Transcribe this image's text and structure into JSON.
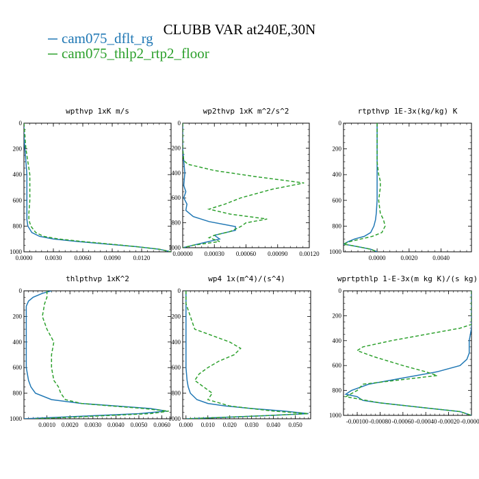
{
  "figure": {
    "title": "CLUBB VAR at240E,30N",
    "legend": [
      {
        "label": "cam075_dflt_rg",
        "color": "#1f77b4",
        "dash": "solid"
      },
      {
        "label": "cam075_thlp2_rtp2_floor",
        "color": "#2ca02c",
        "dash": "dashed"
      }
    ]
  },
  "chart_data": [
    {
      "type": "line",
      "title": "wpthvp  1xK m/s",
      "xlim": [
        0,
        0.015
      ],
      "ylim": [
        1000,
        0
      ],
      "xticks": [
        0.0,
        0.003,
        0.006,
        0.009,
        0.012
      ],
      "xtick_labels": [
        "0.0000",
        "0.0030",
        "0.0060",
        "0.0090",
        "0.0120"
      ],
      "yticks": [
        0,
        200,
        400,
        600,
        800,
        1000
      ],
      "series": [
        {
          "name": "cam075_dflt_rg",
          "y": [
            0,
            100,
            200,
            300,
            400,
            500,
            600,
            700,
            750,
            800,
            850,
            880,
            900,
            920,
            940,
            960,
            980,
            1000
          ],
          "x": [
            0.0,
            0.0,
            0.0001,
            0.0002,
            0.0003,
            0.0003,
            0.0003,
            0.0003,
            0.0003,
            0.0004,
            0.0008,
            0.0016,
            0.003,
            0.0055,
            0.0085,
            0.0115,
            0.0138,
            0.015
          ]
        },
        {
          "name": "cam075_thlp2_rtp2_floor",
          "y": [
            0,
            100,
            200,
            300,
            350,
            400,
            500,
            600,
            700,
            750,
            800,
            850,
            880,
            900,
            920,
            940,
            960,
            980,
            1000
          ],
          "x": [
            0.0,
            0.0001,
            0.0002,
            0.0004,
            0.0005,
            0.0006,
            0.0006,
            0.0006,
            0.0005,
            0.0005,
            0.0007,
            0.0012,
            0.002,
            0.0035,
            0.006,
            0.0088,
            0.0115,
            0.0138,
            0.015
          ]
        }
      ]
    },
    {
      "type": "line",
      "title": "wp2thvp  1xK m^2/s^2",
      "xlim": [
        0,
        0.0012
      ],
      "ylim": [
        1000,
        0
      ],
      "xticks": [
        0.0,
        0.0003,
        0.0006,
        0.0009,
        0.0012
      ],
      "xtick_labels": [
        "0.00000",
        "0.00030",
        "0.00060",
        "0.00090",
        "0.00120"
      ],
      "yticks": [
        0,
        200,
        400,
        600,
        800,
        1000
      ],
      "series": [
        {
          "name": "cam075_dflt_rg",
          "y": [
            0,
            100,
            200,
            300,
            400,
            500,
            550,
            600,
            650,
            700,
            750,
            790,
            830,
            860,
            880,
            900,
            930,
            950,
            970,
            990,
            1000
          ],
          "x": [
            0.0,
            0.0,
            0.0,
            1e-05,
            2e-05,
            1e-05,
            3e-05,
            1e-05,
            4e-05,
            3e-05,
            0.0001,
            0.00025,
            0.0005,
            0.0005,
            0.0004,
            0.0003,
            0.00035,
            0.00025,
            0.00015,
            5e-05,
            0.0
          ]
        },
        {
          "name": "cam075_thlp2_rtp2_floor",
          "y": [
            0,
            100,
            200,
            300,
            330,
            380,
            430,
            480,
            530,
            600,
            650,
            690,
            730,
            770,
            800,
            830,
            870,
            900,
            920,
            950,
            980,
            1000
          ],
          "x": [
            0.0,
            0.0,
            0.0,
            1e-05,
            5e-05,
            0.0003,
            0.0007,
            0.00115,
            0.00085,
            0.00055,
            0.0004,
            0.00025,
            0.00045,
            0.0008,
            0.0006,
            0.00055,
            0.00045,
            0.0003,
            0.00025,
            0.00035,
            0.0001,
            0.0
          ]
        }
      ]
    },
    {
      "type": "line",
      "title": "rtpthvp   1E-3x(kg/kg) K",
      "xlim": [
        -0.0021,
        0.0059
      ],
      "ylim": [
        1000,
        0
      ],
      "xticks": [
        0.0,
        0.002,
        0.004
      ],
      "xtick_labels": [
        "0.0000",
        "0.0020",
        "0.0040"
      ],
      "yticks": [
        0,
        200,
        400,
        600,
        800,
        1000
      ],
      "series": [
        {
          "name": "cam075_dflt_rg",
          "y": [
            0,
            100,
            200,
            300,
            400,
            500,
            600,
            700,
            750,
            800,
            850,
            880,
            900,
            920,
            940,
            960,
            980,
            1000
          ],
          "x": [
            0.0,
            0.0,
            0.0,
            0.0,
            0.0,
            0.0,
            0.0,
            -5e-05,
            -0.0001,
            -0.0002,
            -0.0004,
            -0.0008,
            -0.0014,
            -0.0018,
            -0.0021,
            -0.0012,
            -0.0004,
            0.0
          ]
        },
        {
          "name": "cam075_thlp2_rtp2_floor",
          "y": [
            0,
            100,
            200,
            300,
            400,
            450,
            500,
            600,
            700,
            750,
            800,
            850,
            880,
            900,
            920,
            940,
            960,
            980,
            1000
          ],
          "x": [
            0.0,
            0.0,
            0.0,
            0.0,
            0.0001,
            0.0002,
            0.0002,
            0.0001,
            0.0002,
            0.0004,
            0.0005,
            0.0003,
            -0.0003,
            -0.001,
            -0.0017,
            -0.0021,
            -0.0012,
            -0.0004,
            0.0
          ]
        }
      ]
    },
    {
      "type": "line",
      "title": "thlpthvp   1xK^2",
      "xlim": [
        0,
        0.0064
      ],
      "ylim": [
        1000,
        0
      ],
      "xticks": [
        0.001,
        0.002,
        0.003,
        0.004,
        0.005,
        0.006
      ],
      "xtick_labels": [
        "0.0010",
        "0.0020",
        "0.0030",
        "0.0040",
        "0.0050",
        "0.0060"
      ],
      "yticks": [
        0,
        200,
        400,
        600,
        800,
        1000
      ],
      "series": [
        {
          "name": "cam075_dflt_rg",
          "y": [
            0,
            20,
            50,
            80,
            120,
            200,
            400,
            600,
            700,
            750,
            800,
            850,
            880,
            900,
            920,
            940,
            960,
            980,
            1000
          ],
          "x": [
            0.0012,
            0.0008,
            0.0004,
            0.0002,
            0.0001,
            0.0001,
            0.0001,
            0.0001,
            0.0002,
            0.0003,
            0.0005,
            0.0012,
            0.0025,
            0.004,
            0.0055,
            0.0062,
            0.005,
            0.0025,
            0.0
          ]
        },
        {
          "name": "cam075_thlp2_rtp2_floor",
          "y": [
            0,
            50,
            100,
            200,
            300,
            400,
            500,
            600,
            700,
            750,
            800,
            850,
            880,
            900,
            920,
            940,
            960,
            980,
            1000
          ],
          "x": [
            0.001,
            0.001,
            0.0009,
            0.0008,
            0.001,
            0.0013,
            0.0012,
            0.0012,
            0.0013,
            0.0015,
            0.0016,
            0.0018,
            0.0025,
            0.0038,
            0.0052,
            0.0063,
            0.0055,
            0.003,
            0.0005
          ]
        }
      ]
    },
    {
      "type": "line",
      "title": "wp4   1x(m^4)/(s^4)",
      "xlim": [
        -0.0015,
        0.057
      ],
      "ylim": [
        1000,
        0
      ],
      "xticks": [
        0.0,
        0.01,
        0.02,
        0.03,
        0.04,
        0.05
      ],
      "xtick_labels": [
        "0.000",
        "0.010",
        "0.020",
        "0.030",
        "0.040",
        "0.050"
      ],
      "yticks": [
        0,
        200,
        400,
        600,
        800,
        1000
      ],
      "series": [
        {
          "name": "cam075_dflt_rg",
          "y": [
            0,
            100,
            200,
            300,
            400,
            500,
            600,
            700,
            750,
            800,
            850,
            880,
            900,
            920,
            940,
            960,
            980,
            1000
          ],
          "x": [
            0.0,
            0.0,
            0.0,
            0.0,
            0.0,
            0.0,
            0.0,
            0.0005,
            0.001,
            0.002,
            0.005,
            0.01,
            0.018,
            0.03,
            0.045,
            0.056,
            0.03,
            0.0
          ]
        },
        {
          "name": "cam075_thlp2_rtp2_floor",
          "y": [
            0,
            100,
            200,
            250,
            300,
            350,
            400,
            450,
            500,
            550,
            600,
            650,
            700,
            750,
            800,
            850,
            900,
            940,
            960,
            980,
            1000
          ],
          "x": [
            0.0,
            0.0,
            0.002,
            0.003,
            0.004,
            0.012,
            0.02,
            0.025,
            0.022,
            0.015,
            0.01,
            0.006,
            0.004,
            0.008,
            0.012,
            0.01,
            0.02,
            0.04,
            0.056,
            0.03,
            0.0
          ]
        }
      ]
    },
    {
      "type": "line",
      "title": "wprtpthlp   1-E-3x(m kg K)/(s kg)",
      "xlim": [
        -0.00112,
        0.0
      ],
      "ylim": [
        1000,
        0
      ],
      "xticks": [
        -0.001,
        -0.0008,
        -0.0006,
        -0.0004,
        -0.0002,
        0.0
      ],
      "xtick_labels": [
        "-0.00100",
        "-0.00080",
        "-0.00060",
        "-0.00040",
        "-0.00020",
        "-0.00000"
      ],
      "yticks": [
        0,
        200,
        400,
        600,
        800,
        1000
      ],
      "series": [
        {
          "name": "cam075_dflt_rg",
          "y": [
            0,
            100,
            200,
            300,
            400,
            500,
            550,
            600,
            650,
            700,
            750,
            800,
            830,
            850,
            880,
            900,
            940,
            970,
            1000
          ],
          "x": [
            0.0,
            0.0,
            0.0,
            0.0,
            -2e-05,
            -2e-05,
            -4e-05,
            -0.0001,
            -0.0003,
            -0.0006,
            -0.0009,
            -0.00105,
            -0.0011,
            -0.001,
            -0.00095,
            -0.0008,
            -0.0004,
            -0.0001,
            0.0
          ]
        },
        {
          "name": "cam075_thlp2_rtp2_floor",
          "y": [
            0,
            100,
            200,
            270,
            300,
            350,
            400,
            450,
            480,
            530,
            600,
            650,
            680,
            750,
            800,
            850,
            900,
            940,
            970,
            1000
          ],
          "x": [
            0.0,
            0.0,
            0.0,
            0.0,
            -0.0001,
            -0.0004,
            -0.0007,
            -0.00095,
            -0.001,
            -0.00085,
            -0.0006,
            -0.0004,
            -0.0003,
            -0.00095,
            -0.001,
            -0.0011,
            -0.0008,
            -0.0004,
            -0.0001,
            0.0
          ]
        }
      ]
    }
  ]
}
